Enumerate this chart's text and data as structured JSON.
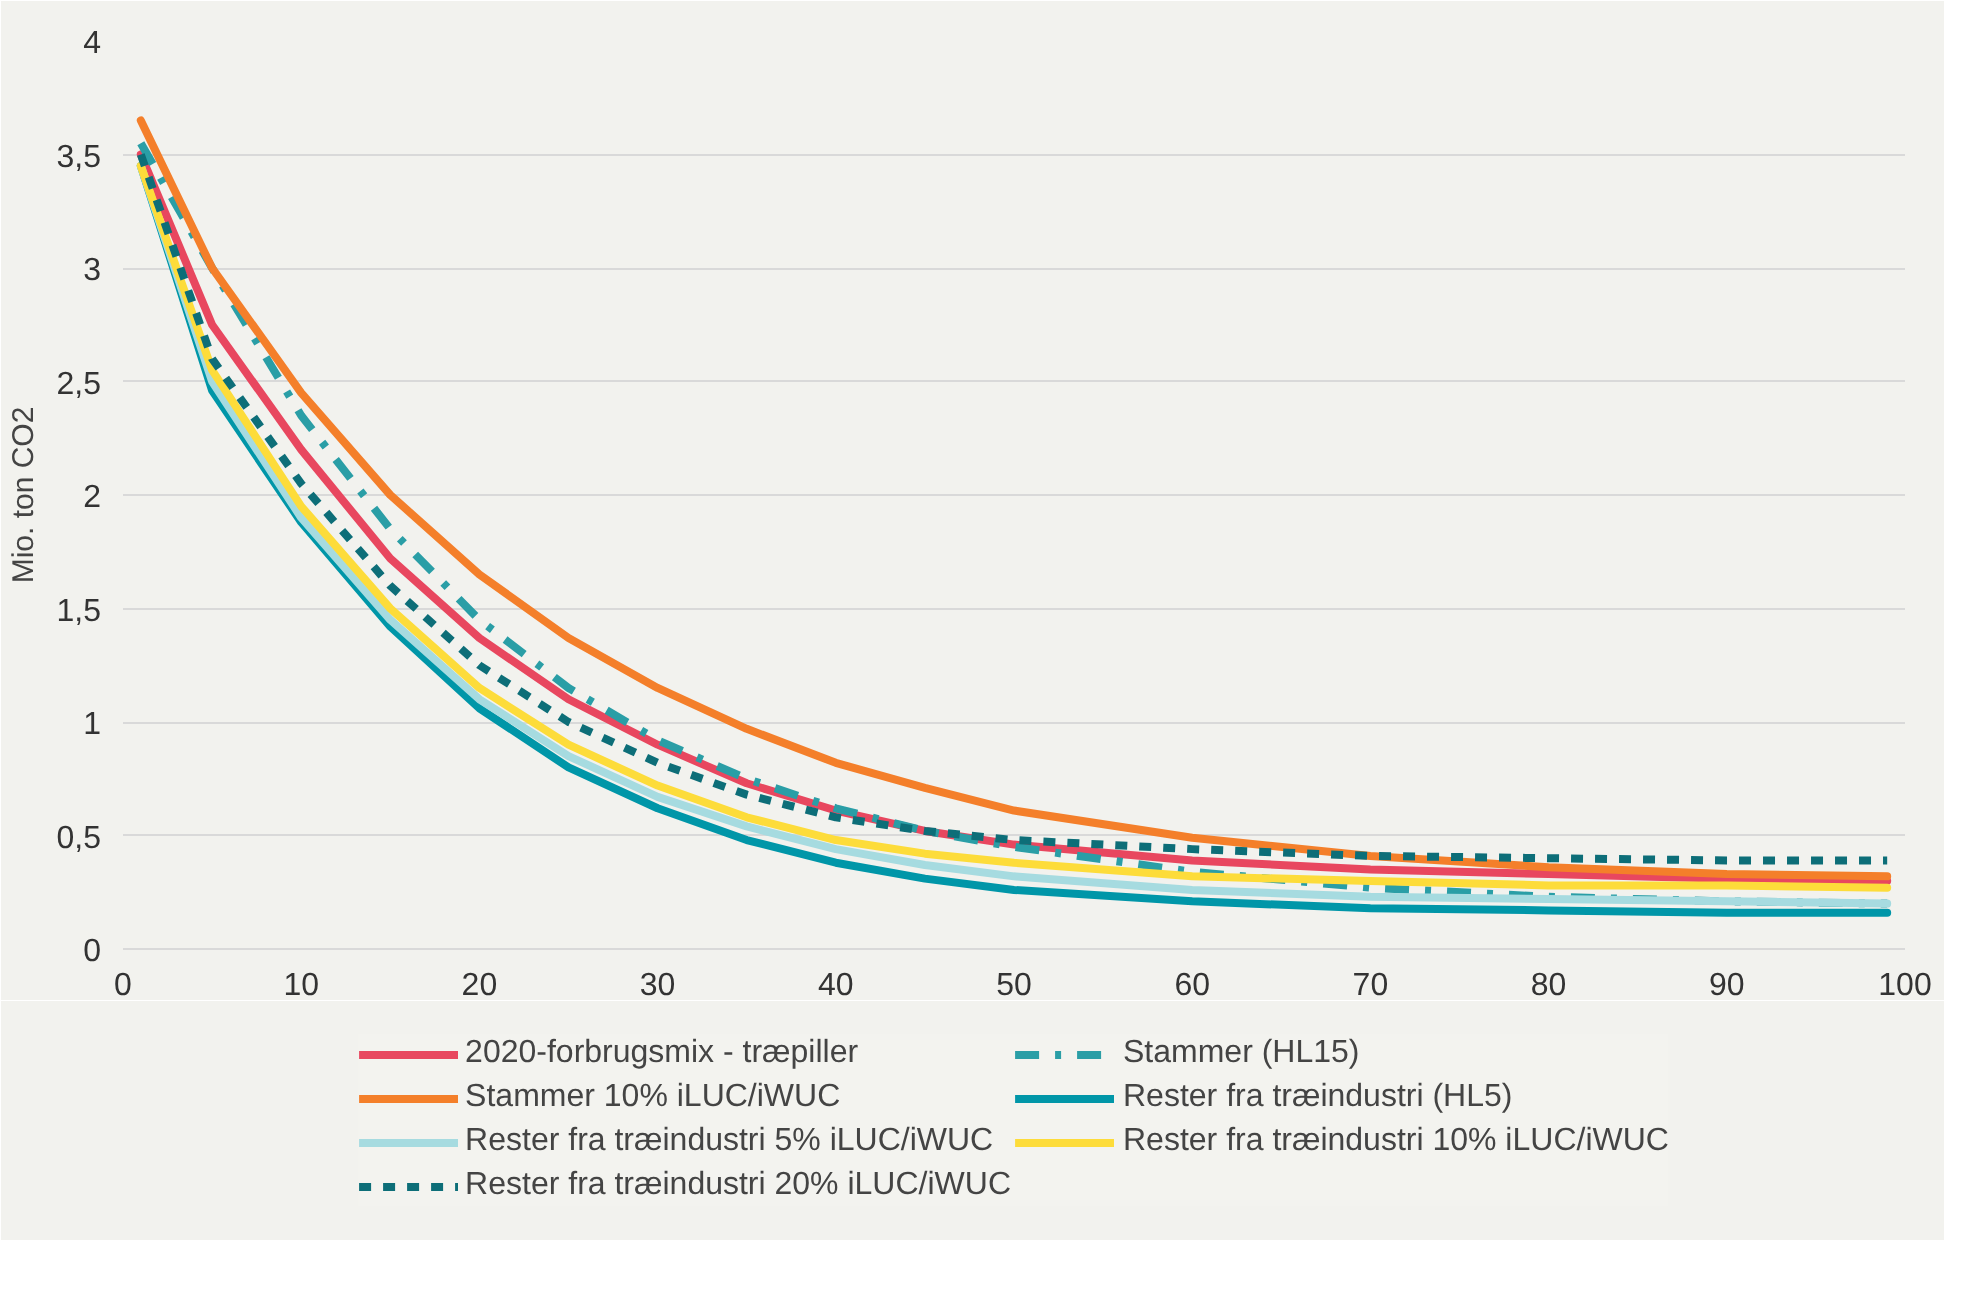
{
  "chart_data": {
    "type": "line",
    "ylabel": "Mio. ton CO2",
    "x": [
      1,
      5,
      10,
      15,
      20,
      25,
      30,
      35,
      40,
      45,
      50,
      60,
      70,
      80,
      90,
      99
    ],
    "xlim": [
      0,
      100
    ],
    "xticks": [
      0,
      10,
      20,
      30,
      40,
      50,
      60,
      70,
      80,
      90,
      100
    ],
    "ylim": [
      0,
      4
    ],
    "yticks": [
      0,
      {
        "value": 0.5,
        "label": "0,5"
      },
      1,
      {
        "value": 1.5,
        "label": "1,5"
      },
      2,
      {
        "value": 2.5,
        "label": "2,5"
      },
      3,
      {
        "value": 3.5,
        "label": "3,5"
      },
      4
    ],
    "grid": "y",
    "legend": "bottom",
    "series": [
      {
        "name": "2020-forbrugsmix - træpiller",
        "color": "#e8475f",
        "line_style": "solid",
        "values": [
          3.5,
          2.75,
          2.2,
          1.72,
          1.37,
          1.1,
          0.9,
          0.73,
          0.61,
          0.52,
          0.46,
          0.39,
          0.35,
          0.33,
          0.31,
          0.3
        ]
      },
      {
        "name": "Stammer (HL15)",
        "color": "#2a9ea6",
        "line_style": "dashdot",
        "values": [
          3.55,
          3.0,
          2.35,
          1.85,
          1.45,
          1.15,
          0.92,
          0.75,
          0.62,
          0.52,
          0.45,
          0.34,
          0.27,
          0.23,
          0.21,
          0.2
        ]
      },
      {
        "name": "Stammer 10% iLUC/iWUC",
        "color": "#f47f2a",
        "line_style": "solid",
        "values": [
          3.65,
          3.0,
          2.45,
          2.0,
          1.65,
          1.37,
          1.15,
          0.97,
          0.82,
          0.71,
          0.61,
          0.49,
          0.41,
          0.36,
          0.33,
          0.32
        ]
      },
      {
        "name": "Rester fra træindustri (HL5)",
        "color": "#0096a8",
        "line_style": "solid",
        "values": [
          3.45,
          2.46,
          1.88,
          1.42,
          1.06,
          0.8,
          0.62,
          0.48,
          0.38,
          0.31,
          0.26,
          0.21,
          0.18,
          0.17,
          0.16,
          0.16
        ]
      },
      {
        "name": "Rester fra træindustri 5% iLUC/iWUC",
        "color": "#a6dbe0",
        "line_style": "solid",
        "values": [
          3.45,
          2.5,
          1.9,
          1.45,
          1.1,
          0.85,
          0.67,
          0.54,
          0.44,
          0.37,
          0.32,
          0.26,
          0.23,
          0.22,
          0.21,
          0.2
        ]
      },
      {
        "name": "Rester fra træindustri 10% iLUC/iWUC",
        "color": "#fddc3a",
        "line_style": "solid",
        "values": [
          3.45,
          2.55,
          1.95,
          1.5,
          1.15,
          0.9,
          0.72,
          0.58,
          0.48,
          0.42,
          0.38,
          0.32,
          0.3,
          0.28,
          0.28,
          0.27
        ]
      },
      {
        "name": "Rester fra træindustri 20% iLUC/iWUC",
        "color": "#0d6e78",
        "line_style": "dashed",
        "values": [
          3.5,
          2.6,
          2.05,
          1.6,
          1.25,
          1.0,
          0.82,
          0.68,
          0.58,
          0.52,
          0.48,
          0.44,
          0.41,
          0.4,
          0.39,
          0.39
        ]
      }
    ]
  }
}
